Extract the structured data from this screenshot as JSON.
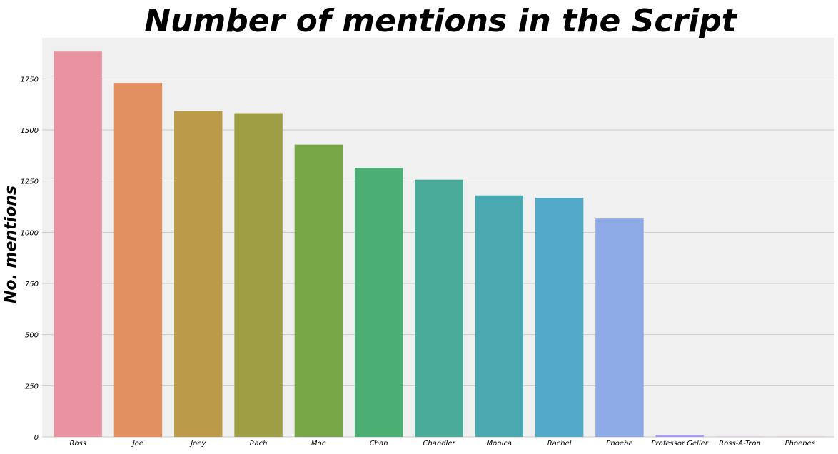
{
  "chart_data": {
    "type": "bar",
    "title": "Number of mentions in the Script",
    "xlabel": "",
    "ylabel": "No. mentions",
    "categories": [
      "Ross",
      "Joe",
      "Joey",
      "Rach",
      "Mon",
      "Chan",
      "Chandler",
      "Monica",
      "Rachel",
      "Phoebe",
      "Professor Geller",
      "Ross-A-Tron",
      "Phoebes"
    ],
    "values": [
      1883,
      1730,
      1592,
      1582,
      1428,
      1315,
      1257,
      1180,
      1168,
      1067,
      9,
      1,
      1
    ],
    "colors": [
      "#e8939f",
      "#e39060",
      "#bb9a4a",
      "#9e9e45",
      "#76a646",
      "#4bae72",
      "#4aab9b",
      "#4aa8b0",
      "#53a9c9",
      "#8daae6",
      "#a89af0",
      "#d98fe0",
      "#eb8fcd"
    ],
    "ylim": [
      0,
      1950
    ],
    "yticks": [
      0,
      250,
      500,
      750,
      1000,
      1250,
      1500,
      1750
    ],
    "grid": true,
    "background": "#f0f0f0"
  }
}
